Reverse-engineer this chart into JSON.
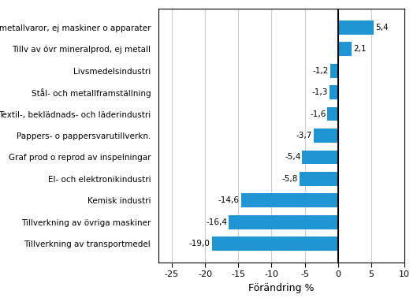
{
  "categories": [
    "Tillverkning av transportmedel",
    "Tillverkning av övriga maskiner",
    "Kemisk industri",
    "El- och elektronikindustri",
    "Graf prod o reprod av inspelningar",
    "Pappers- o pappersvarutillverkn.",
    "Textil-, beklädnads- och läderindustri",
    "Stål- och metallframställning",
    "Livsmedelsindustri",
    "Tillv av övr mineralprod, ej metall",
    "Tillv. metallvaror, ej maskiner o apparater"
  ],
  "values": [
    -19.0,
    -16.4,
    -14.6,
    -5.8,
    -5.4,
    -3.7,
    -1.6,
    -1.3,
    -1.2,
    2.1,
    5.4
  ],
  "value_labels": [
    "-19,0",
    "-16,4",
    "-14,6",
    "-5,8",
    "-5,4",
    "-3,7",
    "-1,6",
    "-1,3",
    "-1,2",
    "2,1",
    "5,4"
  ],
  "bar_color": "#1f96d3",
  "xlabel": "Förändring %",
  "xlim": [
    -27,
    10
  ],
  "xticks": [
    -25,
    -20,
    -15,
    -10,
    -5,
    0,
    5,
    10
  ],
  "xtick_labels": [
    "-25",
    "-20",
    "-15",
    "-10",
    "-5",
    "0",
    "5",
    "10"
  ],
  "label_fontsize": 7.5,
  "tick_fontsize": 8,
  "xlabel_fontsize": 9,
  "value_fontsize": 7.5,
  "background_color": "#ffffff"
}
